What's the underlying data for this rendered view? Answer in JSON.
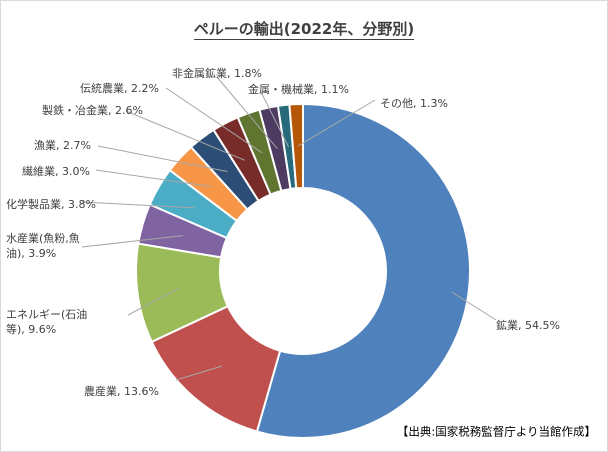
{
  "chart_data": {
    "type": "donut",
    "title": "ペルーの輸出(2022年、分野別)",
    "source": "【出典:国家税務監督庁より当館作成】",
    "slices": [
      {
        "name": "鉱業",
        "value": 54.5,
        "label": "鉱業, 54.5%",
        "color": "#4f81bd"
      },
      {
        "name": "農産業",
        "value": 13.6,
        "label": "農産業, 13.6%",
        "color": "#c0504d"
      },
      {
        "name": "エネルギー(石油等)",
        "value": 9.6,
        "label": [
          "エネルギー(石油",
          "等), 9.6%"
        ],
        "color": "#9bbb59"
      },
      {
        "name": "水産業(魚粉,魚油)",
        "value": 3.9,
        "label": [
          "水産業(魚粉,魚",
          "油), 3.9%"
        ],
        "color": "#8064a2"
      },
      {
        "name": "化学製品業",
        "value": 3.8,
        "label": "化学製品業, 3.8%",
        "color": "#4bacc6"
      },
      {
        "name": "繊維業",
        "value": 3.0,
        "label": "繊維業, 3.0%",
        "color": "#f79646"
      },
      {
        "name": "漁業",
        "value": 2.7,
        "label": "漁業, 2.7%",
        "color": "#2c4d75"
      },
      {
        "name": "製鉄・冶金業",
        "value": 2.6,
        "label": "製鉄・冶金業, 2.6%",
        "color": "#772c2a"
      },
      {
        "name": "伝統農業",
        "value": 2.2,
        "label": "伝統農業, 2.2%",
        "color": "#5f7530"
      },
      {
        "name": "非金属鉱業",
        "value": 1.8,
        "label": "非金属鉱業, 1.8%",
        "color": "#4d3b62"
      },
      {
        "name": "金属・機械業",
        "value": 1.1,
        "label": "金属・機械業, 1.1%",
        "color": "#276a7c"
      },
      {
        "name": "その他",
        "value": 1.3,
        "label": "その他, 1.3%",
        "color": "#b65708"
      }
    ]
  }
}
